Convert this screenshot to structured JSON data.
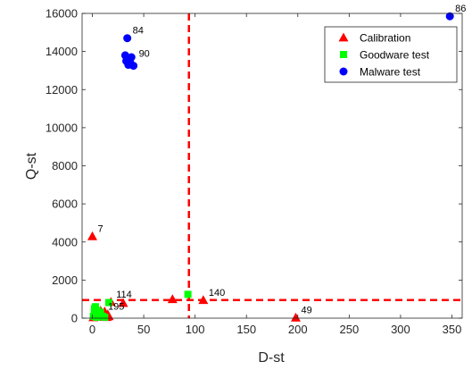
{
  "chart_data": {
    "type": "scatter",
    "xlabel": "D-st",
    "ylabel": "Q-st",
    "xlim": [
      -10,
      360
    ],
    "ylim": [
      0,
      16000
    ],
    "xticks": [
      0,
      50,
      100,
      150,
      200,
      250,
      300,
      350
    ],
    "yticks": [
      0,
      2000,
      4000,
      6000,
      8000,
      10000,
      12000,
      14000,
      16000
    ],
    "grid": false,
    "legend_position": "top-right",
    "thresholds": {
      "x": 94,
      "y": 950,
      "color": "#ff0000",
      "style": "dashed"
    },
    "series": [
      {
        "name": "Calibration",
        "marker": "triangle",
        "color": "#ff0000",
        "points": [
          [
            0,
            4300
          ],
          [
            1,
            50
          ],
          [
            2,
            150
          ],
          [
            3,
            250
          ],
          [
            4,
            100
          ],
          [
            5,
            300
          ],
          [
            6,
            80
          ],
          [
            7,
            200
          ],
          [
            8,
            400
          ],
          [
            9,
            120
          ],
          [
            10,
            260
          ],
          [
            11,
            80
          ],
          [
            12,
            350
          ],
          [
            13,
            150
          ],
          [
            14,
            60
          ],
          [
            15,
            200
          ],
          [
            16,
            100
          ],
          [
            18,
            850
          ],
          [
            30,
            800
          ],
          [
            78,
            1000
          ],
          [
            108,
            950
          ],
          [
            198,
            30
          ]
        ]
      },
      {
        "name": "Goodware test",
        "marker": "square",
        "color": "#00ff00",
        "points": [
          [
            1,
            100
          ],
          [
            2,
            300
          ],
          [
            2,
            500
          ],
          [
            3,
            600
          ],
          [
            3,
            200
          ],
          [
            4,
            50
          ],
          [
            5,
            400
          ],
          [
            6,
            150
          ],
          [
            8,
            300
          ],
          [
            10,
            100
          ],
          [
            12,
            50
          ],
          [
            16,
            820
          ],
          [
            93,
            1250
          ]
        ]
      },
      {
        "name": "Malware test",
        "marker": "circle",
        "color": "#0000ff",
        "points": [
          [
            32,
            13800
          ],
          [
            33,
            13500
          ],
          [
            34,
            14700
          ],
          [
            35,
            13300
          ],
          [
            36,
            13600
          ],
          [
            37,
            13400
          ],
          [
            38,
            13700
          ],
          [
            40,
            13250
          ],
          [
            348,
            15850
          ]
        ]
      }
    ],
    "annotations": [
      {
        "text": "84",
        "x": 34,
        "y": 14700
      },
      {
        "text": "90",
        "x": 40,
        "y": 13500
      },
      {
        "text": "86",
        "x": 348,
        "y": 15850
      },
      {
        "text": "7",
        "x": 0,
        "y": 4300
      },
      {
        "text": "114",
        "x": 18,
        "y": 850
      },
      {
        "text": "195",
        "x": 10,
        "y": 200
      },
      {
        "text": "140",
        "x": 108,
        "y": 950
      },
      {
        "text": "49",
        "x": 198,
        "y": 30
      }
    ]
  }
}
